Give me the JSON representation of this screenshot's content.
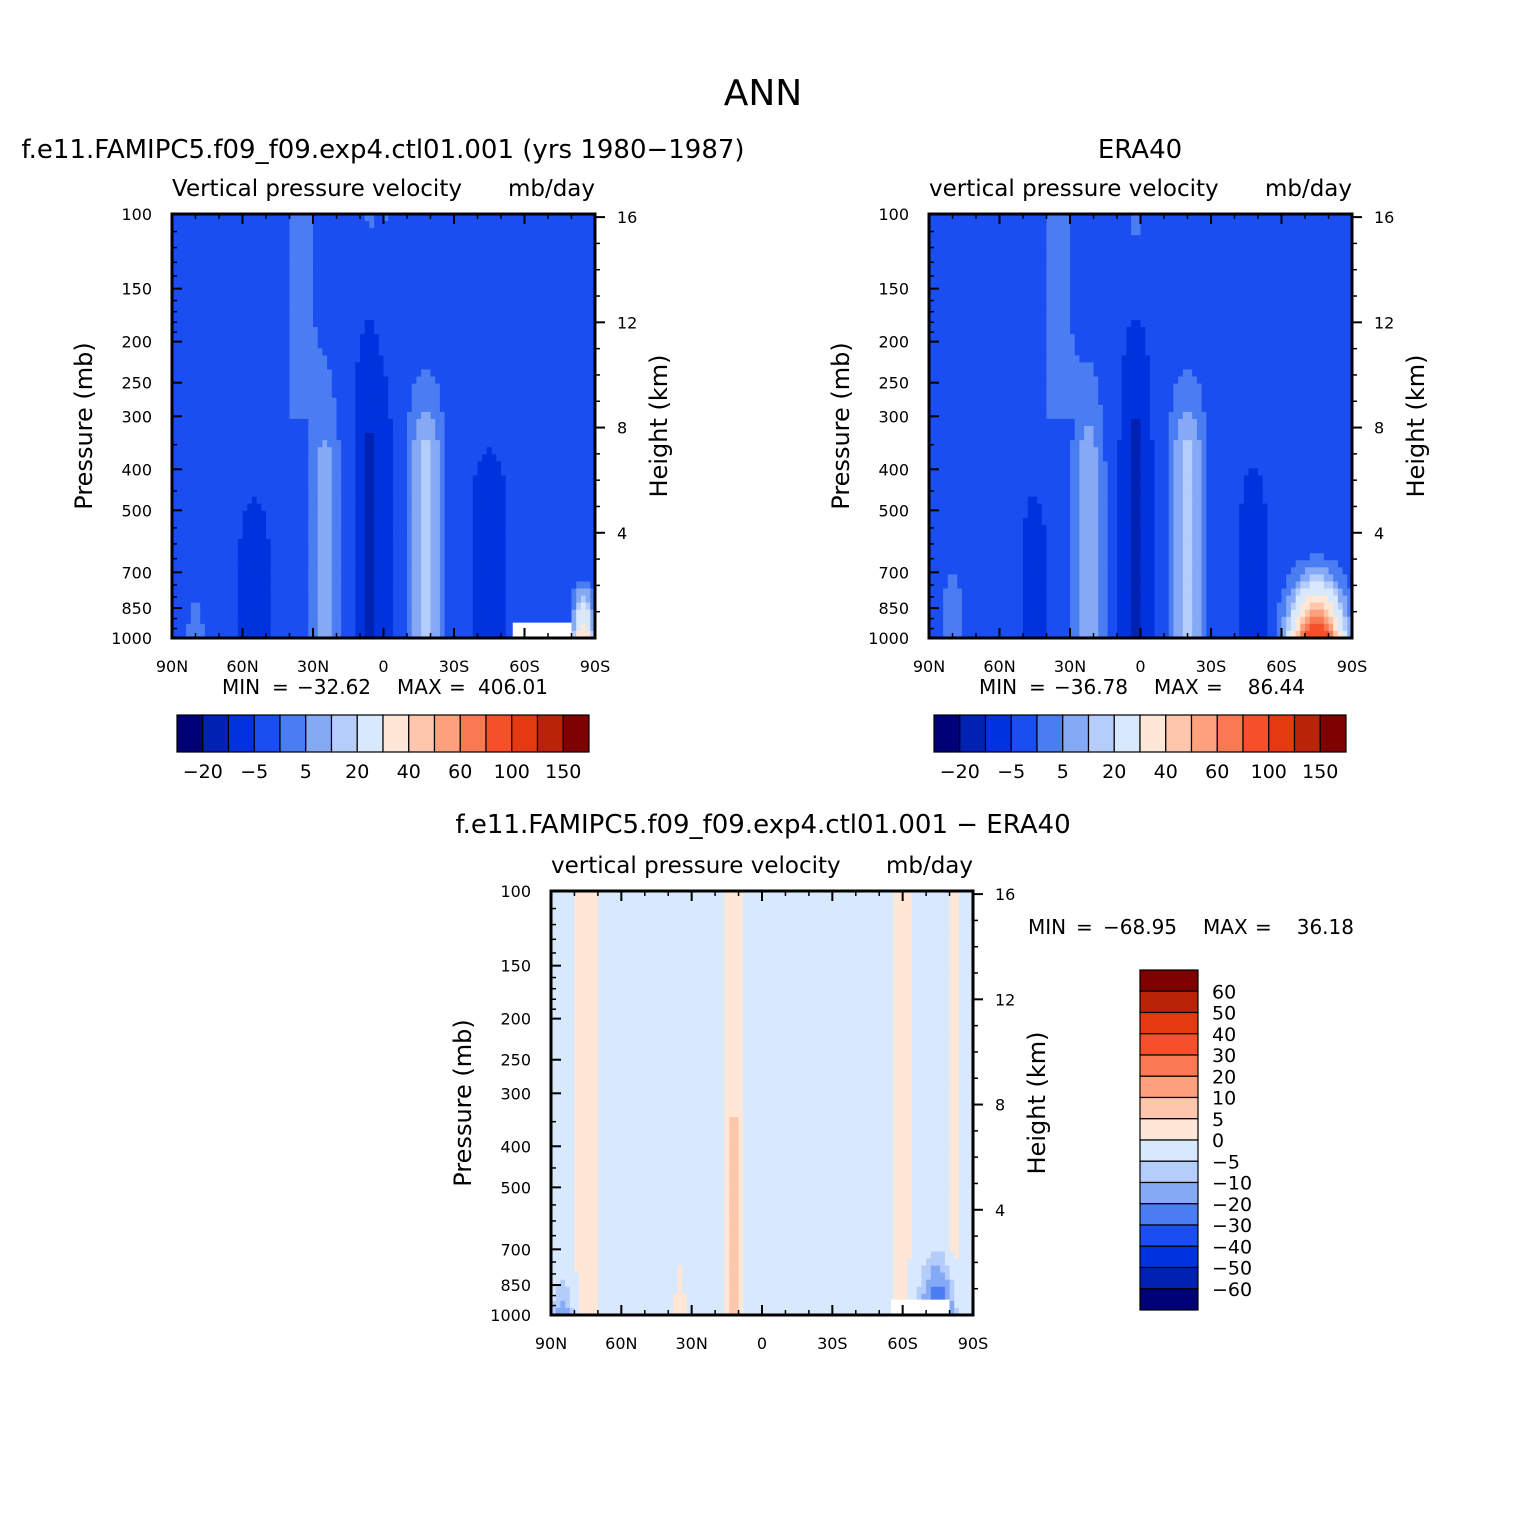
{
  "figure_title": "ANN",
  "colors": {
    "model_levels": [
      "#000077",
      "#0022b3",
      "#0033dd",
      "#1a4ef0",
      "#4a7cf2",
      "#86a9f6",
      "#b5cdfa",
      "#d8e8fd",
      "#fee7d6",
      "#fdc6ad",
      "#fca07e",
      "#f97a52",
      "#f6502a",
      "#e33a12",
      "#b82408",
      "#7f0000"
    ],
    "diff_levels": [
      "#000077",
      "#0022b3",
      "#0033dd",
      "#1a4ef0",
      "#4a7cf2",
      "#86a9f6",
      "#b5cdfa",
      "#d8e8fd",
      "#fee7d6",
      "#fdc6ad",
      "#fca07e",
      "#f97a52",
      "#f6502a",
      "#e33a12",
      "#b82408",
      "#7f0000"
    ],
    "missing": "#ffffff"
  },
  "chart_data": [
    {
      "type": "heatmap",
      "title": "f.e11.FAMIPC5.f09_f09.exp4.ctl01.001 (yrs 1980−1987)",
      "subtitle_left": "Vertical pressure velocity",
      "subtitle_right": "mb/day",
      "ylabel": "Pressure (mb)",
      "ylabel_right": "Height (km)",
      "x_ticks": [
        "90N",
        "60N",
        "30N",
        "0",
        "30S",
        "60S",
        "90S"
      ],
      "y_ticks": [
        "100",
        "150",
        "200",
        "250",
        "300",
        "400",
        "500",
        "700",
        "850",
        "1000"
      ],
      "y_right_ticks": [
        "16",
        "12",
        "8",
        "4"
      ],
      "ylim": [
        1000,
        100
      ],
      "min_label": "MIN",
      "min_value": "−32.62",
      "max_label": "MAX",
      "max_value": "406.01",
      "stats_text": "MIN = −32.62 MAX = 406.01",
      "colorbar": {
        "orientation": "horizontal",
        "labels": [
          "−20",
          "−5",
          "5",
          "20",
          "40",
          "60",
          "100",
          "150"
        ]
      },
      "field_profile": "model"
    },
    {
      "type": "heatmap",
      "title": "ERA40",
      "subtitle_left": "vertical pressure velocity",
      "subtitle_right": "mb/day",
      "ylabel": "Pressure (mb)",
      "ylabel_right": "Height (km)",
      "x_ticks": [
        "90N",
        "60N",
        "30N",
        "0",
        "30S",
        "60S",
        "90S"
      ],
      "y_ticks": [
        "100",
        "150",
        "200",
        "250",
        "300",
        "400",
        "500",
        "700",
        "850",
        "1000"
      ],
      "y_right_ticks": [
        "16",
        "12",
        "8",
        "4"
      ],
      "ylim": [
        1000,
        100
      ],
      "min_label": "MIN",
      "min_value": "−36.78",
      "max_label": "MAX",
      "max_value": "86.44",
      "stats_text": "MIN = −36.78 MAX = 86.44",
      "colorbar": {
        "orientation": "horizontal",
        "labels": [
          "−20",
          "−5",
          "5",
          "20",
          "40",
          "60",
          "100",
          "150"
        ]
      },
      "field_profile": "obs"
    },
    {
      "type": "heatmap",
      "title": "f.e11.FAMIPC5.f09_f09.exp4.ctl01.001 − ERA40",
      "subtitle_left": "vertical pressure velocity",
      "subtitle_right": "mb/day",
      "ylabel": "Pressure (mb)",
      "ylabel_right": "Height (km)",
      "x_ticks": [
        "90N",
        "60N",
        "30N",
        "0",
        "30S",
        "60S",
        "90S"
      ],
      "y_ticks": [
        "100",
        "150",
        "200",
        "250",
        "300",
        "400",
        "500",
        "700",
        "850",
        "1000"
      ],
      "y_right_ticks": [
        "16",
        "12",
        "8",
        "4"
      ],
      "ylim": [
        1000,
        100
      ],
      "min_label": "MIN",
      "min_value": "−68.95",
      "max_label": "MAX",
      "max_value": "36.18",
      "stats_text": "MIN = −68.95 MAX = 36.18",
      "colorbar": {
        "orientation": "vertical",
        "labels": [
          "60",
          "50",
          "40",
          "30",
          "20",
          "10",
          "5",
          "0",
          "−5",
          "−10",
          "−20",
          "−30",
          "−40",
          "−50",
          "−60"
        ]
      },
      "field_profile": "diff"
    }
  ]
}
